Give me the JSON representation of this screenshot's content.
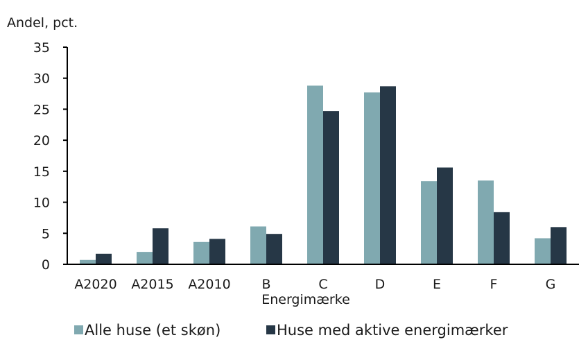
{
  "chart_data": {
    "type": "bar",
    "ylabel": "Andel, pct.",
    "xlabel": "Energimærke",
    "categories": [
      "A2020",
      "A2015",
      "A2010",
      "B",
      "C",
      "D",
      "E",
      "F",
      "G"
    ],
    "series": [
      {
        "name": "Alle huse (et skøn)",
        "color": "#80a9b0",
        "values": [
          0.7,
          2.0,
          3.6,
          6.1,
          28.8,
          27.7,
          13.4,
          13.5,
          4.2
        ]
      },
      {
        "name": "Huse med aktive energimærker",
        "color": "#263746",
        "values": [
          1.7,
          5.8,
          4.1,
          4.9,
          24.7,
          28.7,
          15.6,
          8.4,
          6.0
        ]
      }
    ],
    "ylim": [
      0,
      35
    ],
    "yticks": [
      0,
      5,
      10,
      15,
      20,
      25,
      30,
      35
    ],
    "legend_position": "bottom",
    "grid": false
  }
}
